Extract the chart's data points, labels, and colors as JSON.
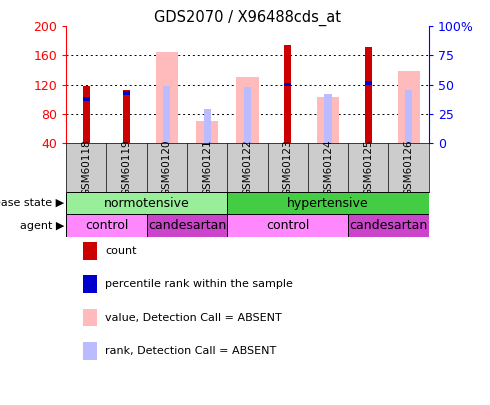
{
  "title": "GDS2070 / X96488cds_at",
  "samples": [
    "GSM60118",
    "GSM60119",
    "GSM60120",
    "GSM60121",
    "GSM60122",
    "GSM60123",
    "GSM60124",
    "GSM60125",
    "GSM60126"
  ],
  "count_values": [
    118,
    112,
    null,
    null,
    null,
    175,
    null,
    172,
    null
  ],
  "percentile_values": [
    100,
    108,
    null,
    null,
    null,
    120,
    null,
    122,
    null
  ],
  "absent_value_bars": [
    null,
    null,
    165,
    70,
    130,
    null,
    103,
    null,
    138
  ],
  "absent_rank_bars": [
    null,
    null,
    118,
    87,
    117,
    null,
    107,
    null,
    113
  ],
  "ylim": [
    40,
    200
  ],
  "yticks_left": [
    40,
    80,
    120,
    160,
    200
  ],
  "yticks_right": [
    0,
    25,
    50,
    75,
    100
  ],
  "ytick_labels_right": [
    "0",
    "25",
    "50",
    "75",
    "100%"
  ],
  "count_color": "#cc0000",
  "percentile_color": "#0000cc",
  "absent_value_color": "#ffbbbb",
  "absent_rank_color": "#bbbbff",
  "bg_color": "#ffffff",
  "label_bg_color": "#cccccc",
  "disease_state": [
    {
      "label": "normotensive",
      "start": 0,
      "end": 4,
      "color": "#99ee99"
    },
    {
      "label": "hypertensive",
      "start": 4,
      "end": 9,
      "color": "#44cc44"
    }
  ],
  "agent": [
    {
      "label": "control",
      "start": 0,
      "end": 2,
      "color": "#ff88ff"
    },
    {
      "label": "candesartan",
      "start": 2,
      "end": 4,
      "color": "#cc44cc"
    },
    {
      "label": "control",
      "start": 4,
      "end": 7,
      "color": "#ff88ff"
    },
    {
      "label": "candesartan",
      "start": 7,
      "end": 9,
      "color": "#cc44cc"
    }
  ],
  "legend_items": [
    {
      "label": "count",
      "color": "#cc0000"
    },
    {
      "label": "percentile rank within the sample",
      "color": "#0000cc"
    },
    {
      "label": "value, Detection Call = ABSENT",
      "color": "#ffbbbb"
    },
    {
      "label": "rank, Detection Call = ABSENT",
      "color": "#bbbbff"
    }
  ]
}
